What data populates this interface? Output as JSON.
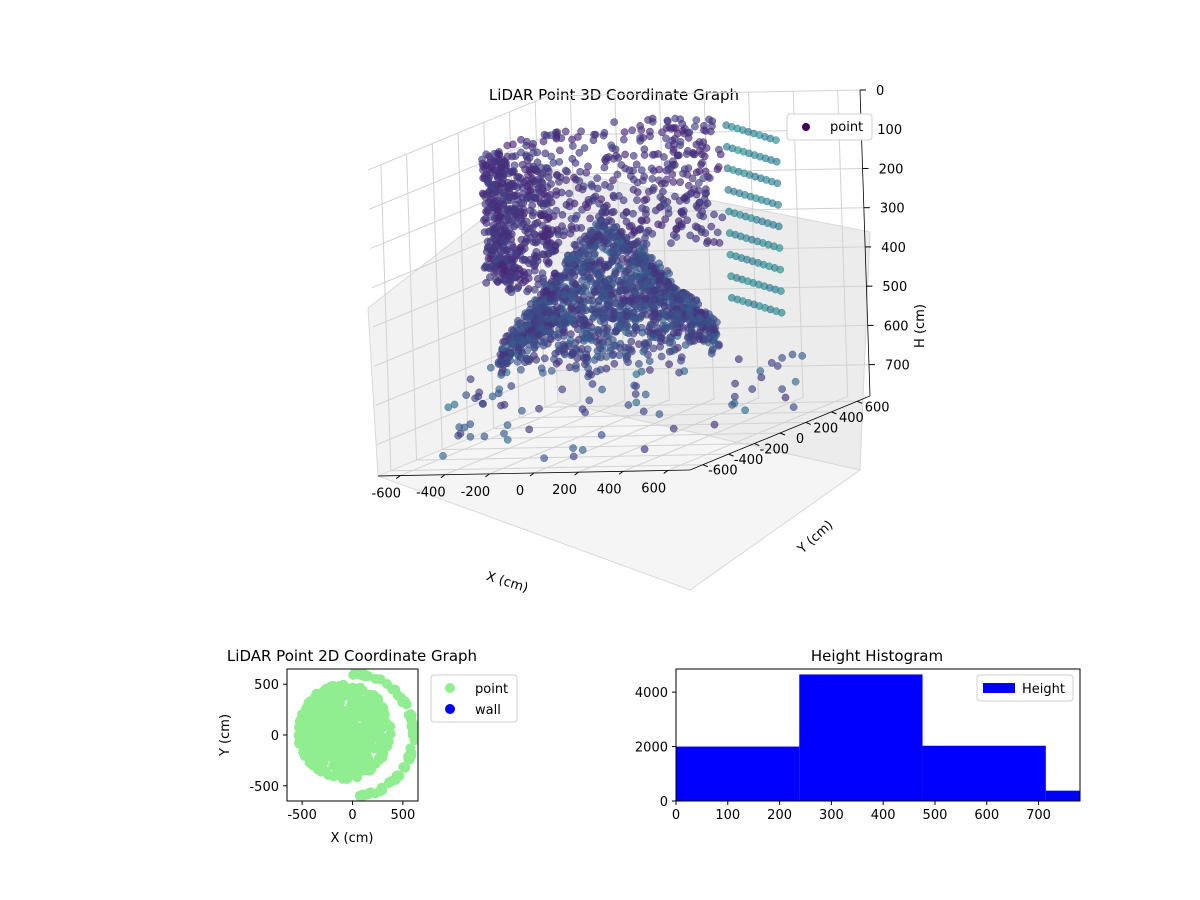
{
  "chart_data": [
    {
      "type": "scatter",
      "projection": "3d",
      "title": "LiDAR Point 3D Coordinate Graph",
      "xlabel": "X (cm)",
      "ylabel": "Y (cm)",
      "zlabel": "H (cm)",
      "xlim": [
        -700,
        700
      ],
      "ylim": [
        -700,
        700
      ],
      "zlim": [
        0,
        780
      ],
      "z_inverted": true,
      "xticks": [
        "-600",
        "-400",
        "-200",
        "0",
        "200",
        "400",
        "600"
      ],
      "yticks": [
        "-600",
        "-400",
        "-200",
        "0",
        "200",
        "400",
        "600"
      ],
      "zticks": [
        "0",
        "100",
        "200",
        "300",
        "400",
        "500",
        "600",
        "700"
      ],
      "grid": true,
      "colormap": "viridis",
      "legend": {
        "position": "top-right",
        "entries": [
          {
            "label": "point",
            "color": "#440154"
          }
        ]
      },
      "series": [
        {
          "name": "point",
          "shape": "dense circular room scan with a dome-like cluster near the center and sparse outliers",
          "ring_radius": [
            380,
            520
          ],
          "cluster_center": [
            0,
            0
          ],
          "height_range": [
            0,
            780
          ]
        }
      ]
    },
    {
      "type": "scatter",
      "title": "LiDAR Point 2D Coordinate Graph",
      "xlabel": "X (cm)",
      "ylabel": "Y (cm)",
      "xlim": [
        -650,
        650
      ],
      "ylim": [
        -650,
        650
      ],
      "xticks": [
        "-500",
        "0",
        "500"
      ],
      "yticks": [
        "500",
        "0",
        "-500"
      ],
      "legend": {
        "position": "outside-right",
        "entries": [
          {
            "label": "point",
            "color": "#90ee90"
          },
          {
            "label": "wall",
            "color": "#0000ff"
          }
        ]
      },
      "series": [
        {
          "name": "point",
          "color": "#90ee90",
          "cluster_center": [
            -80,
            30
          ],
          "cluster_radius": 470,
          "outer_arc_radius": 590
        },
        {
          "name": "wall",
          "color": "#0000ff",
          "points": []
        }
      ]
    },
    {
      "type": "bar",
      "subtype": "histogram",
      "title": "Height Histogram",
      "xlim": [
        0,
        780
      ],
      "ylim": [
        0,
        4850
      ],
      "xticks": [
        "0",
        "100",
        "200",
        "300",
        "400",
        "500",
        "600",
        "700"
      ],
      "yticks": [
        "0",
        "2000",
        "4000"
      ],
      "color": "#0000ff",
      "legend": {
        "position": "top-right",
        "entries": [
          {
            "label": "Height",
            "color": "#0000ff"
          }
        ]
      },
      "bins": [
        {
          "x0": 0,
          "x1": 238,
          "count": 2000
        },
        {
          "x0": 238,
          "x1": 476,
          "count": 4650
        },
        {
          "x0": 476,
          "x1": 714,
          "count": 2030
        },
        {
          "x0": 714,
          "x1": 780,
          "count": 380
        }
      ]
    }
  ]
}
